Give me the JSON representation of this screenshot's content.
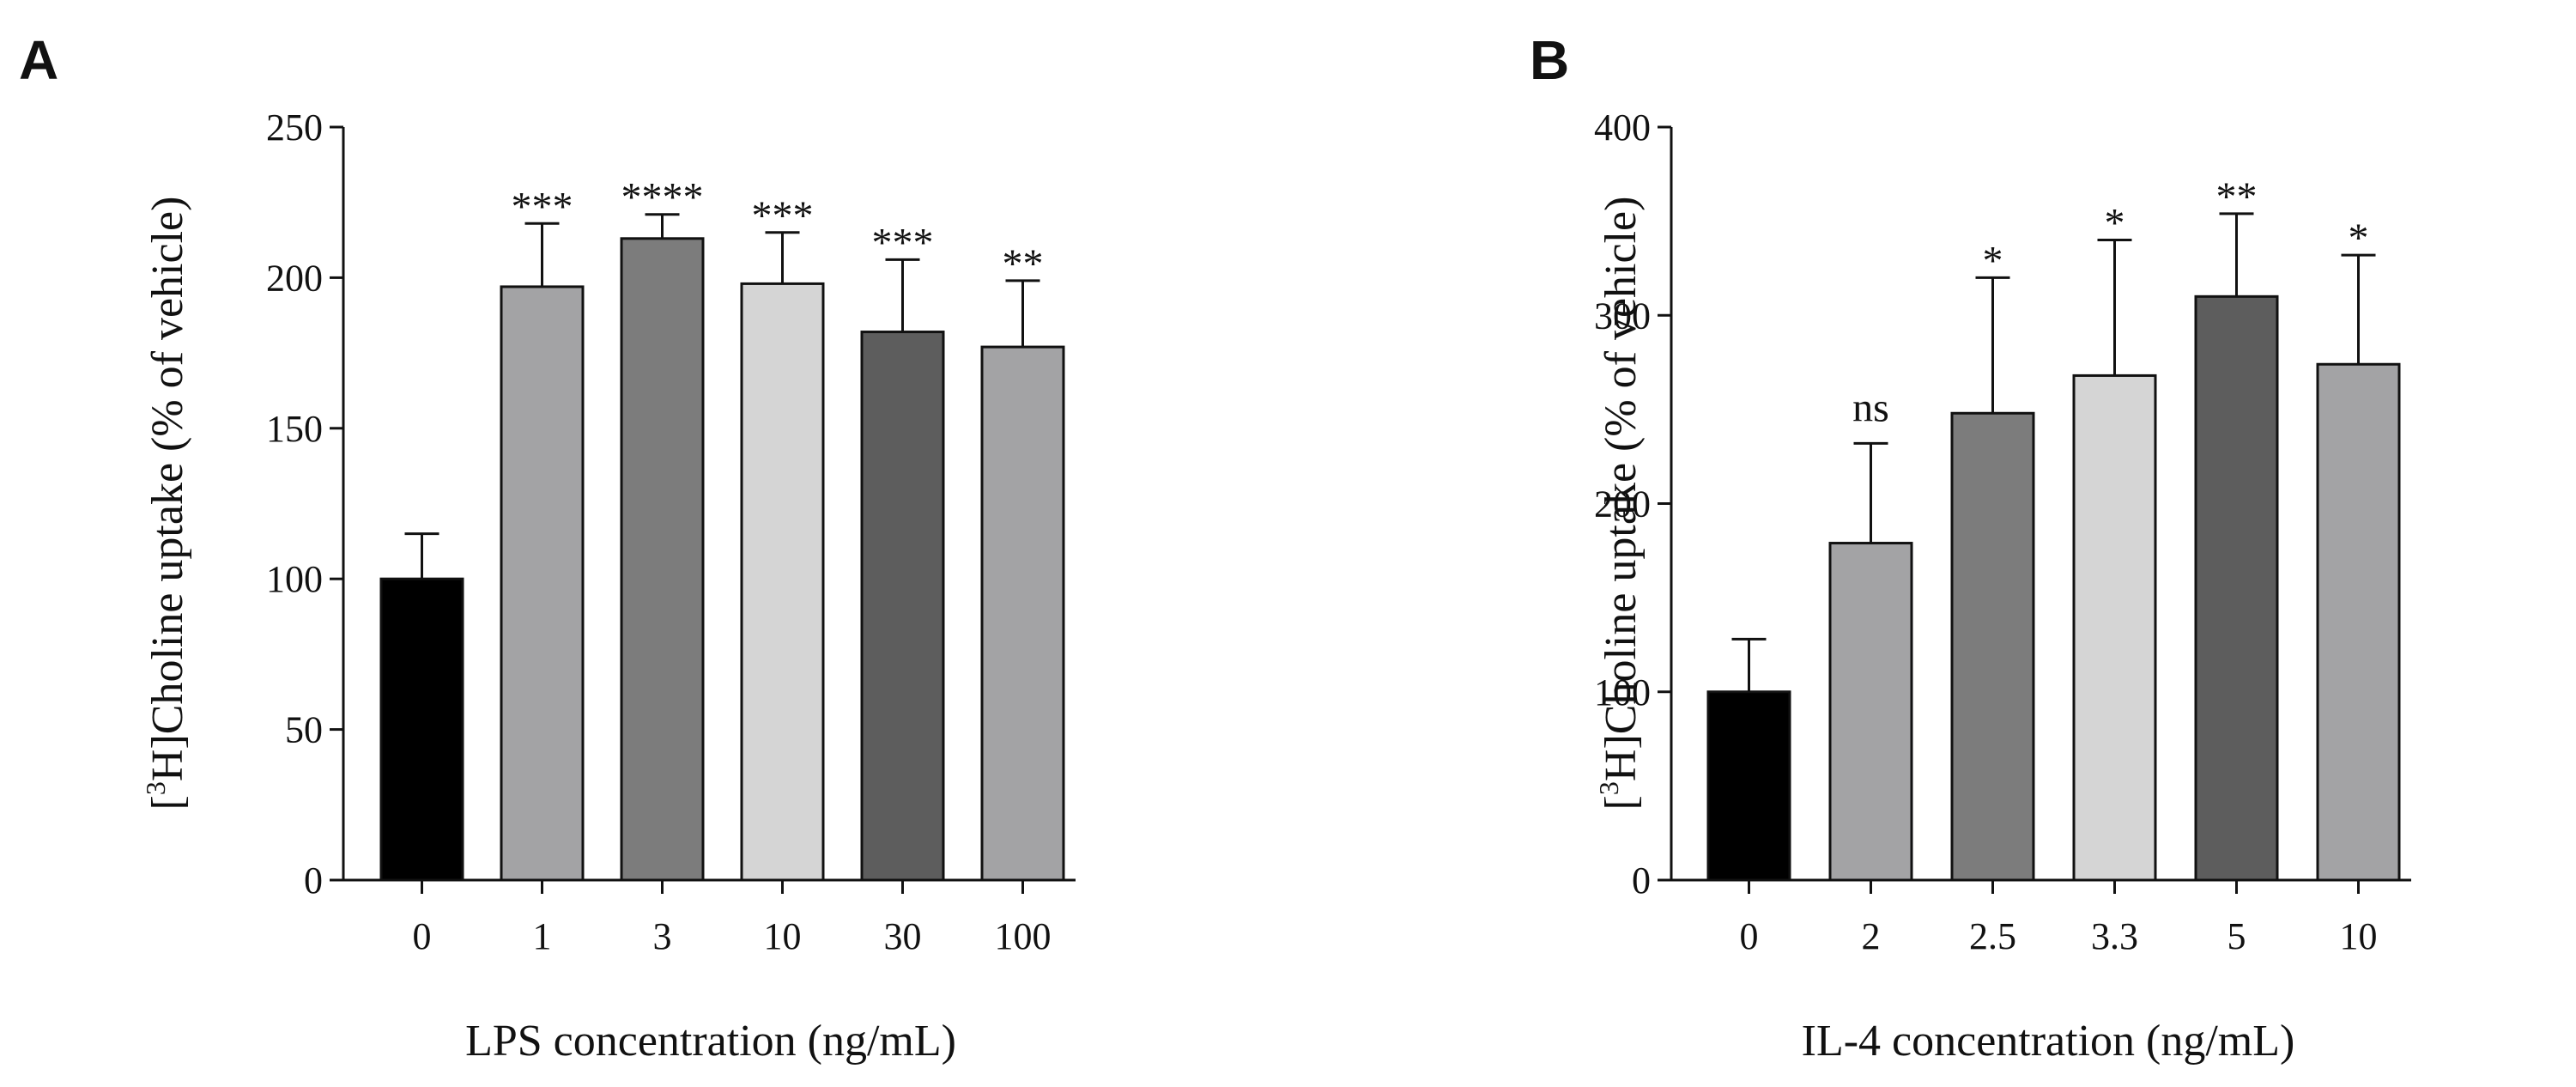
{
  "chart_data": [
    {
      "type": "bar",
      "panel_label": "A",
      "categories": [
        "0",
        "1",
        "3",
        "10",
        "30",
        "100"
      ],
      "values": [
        100,
        197,
        213,
        198,
        182,
        177
      ],
      "errors": [
        15,
        21,
        8,
        17,
        24,
        22
      ],
      "significance": [
        "",
        "***",
        "****",
        "***",
        "***",
        "**"
      ],
      "bar_colors": [
        "#000000",
        "#a3a3a5",
        "#7c7c7c",
        "#d5d5d5",
        "#5d5d5d",
        "#a3a3a5"
      ],
      "title": "",
      "xlabel": "LPS concentration (ng/mL)",
      "ylabel": {
        "bracket_open": "[",
        "superscript": "3",
        "rest": "H]Choline uptake (% of vehicle)"
      },
      "ylim": [
        0,
        250
      ],
      "yticks": [
        0,
        50,
        100,
        150,
        200,
        250
      ]
    },
    {
      "type": "bar",
      "panel_label": "B",
      "categories": [
        "0",
        "2",
        "2.5",
        "3.3",
        "5",
        "10"
      ],
      "values": [
        100,
        179,
        248,
        268,
        310,
        274
      ],
      "errors": [
        28,
        53,
        72,
        72,
        44,
        58
      ],
      "significance": [
        "",
        "ns",
        "*",
        "*",
        "**",
        "*"
      ],
      "bar_colors": [
        "#000000",
        "#a3a3a5",
        "#7c7c7c",
        "#d5d5d5",
        "#5d5d5d",
        "#a3a3a5"
      ],
      "title": "",
      "xlabel": "IL-4 concentration (ng/mL)",
      "ylabel": {
        "bracket_open": "[",
        "superscript": "3",
        "rest": "H]Choline uptake (% of vehicle)"
      },
      "ylim": [
        0,
        400
      ],
      "yticks": [
        0,
        100,
        200,
        300,
        400
      ]
    }
  ]
}
